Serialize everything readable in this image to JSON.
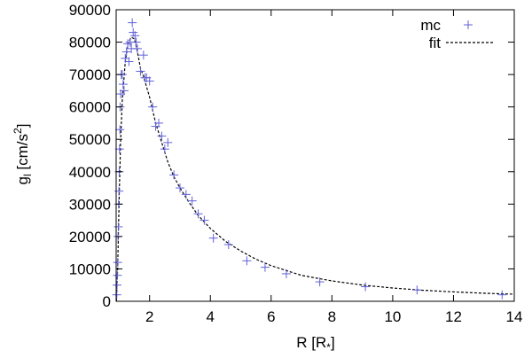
{
  "chart_data": {
    "type": "scatter",
    "xlabel": "R [R",
    "xlabel_sub": "*",
    "xlabel_close": "]",
    "ylabel": "g",
    "ylabel_sub": "l",
    "ylabel_unit_open": " [cm/s",
    "ylabel_unit_sup": "2",
    "ylabel_unit_close": "]",
    "xlim": [
      0.9,
      14
    ],
    "ylim": [
      0,
      90000
    ],
    "x_tick_values": [
      2,
      4,
      6,
      8,
      10,
      12,
      14
    ],
    "x_tick_labels": [
      "2",
      "4",
      "6",
      "8",
      "10",
      "12",
      "14"
    ],
    "y_tick_values": [
      0,
      10000,
      20000,
      30000,
      40000,
      50000,
      60000,
      70000,
      80000,
      90000
    ],
    "y_tick_labels": [
      "0",
      "10000",
      "20000",
      "30000",
      "40000",
      "50000",
      "60000",
      "70000",
      "80000",
      "90000"
    ],
    "grid": false,
    "legend_position": "top-right",
    "series": [
      {
        "name": "mc",
        "style": "points",
        "marker": "plus",
        "color": "#6060d8",
        "points": [
          [
            0.92,
            2000
          ],
          [
            0.93,
            5000
          ],
          [
            0.94,
            8000
          ],
          [
            0.95,
            12000
          ],
          [
            0.96,
            20000
          ],
          [
            0.97,
            23000
          ],
          [
            0.98,
            30000
          ],
          [
            0.99,
            34000
          ],
          [
            1.0,
            40000
          ],
          [
            1.01,
            47000
          ],
          [
            1.02,
            53000
          ],
          [
            1.03,
            60000
          ],
          [
            1.05,
            64000
          ],
          [
            1.07,
            70000
          ],
          [
            1.1,
            70000
          ],
          [
            1.13,
            67000
          ],
          [
            1.16,
            65000
          ],
          [
            1.2,
            75000
          ],
          [
            1.24,
            77000
          ],
          [
            1.28,
            79500
          ],
          [
            1.32,
            74000
          ],
          [
            1.36,
            80000
          ],
          [
            1.4,
            78000
          ],
          [
            1.43,
            86000
          ],
          [
            1.46,
            83000
          ],
          [
            1.52,
            82000
          ],
          [
            1.56,
            80000
          ],
          [
            1.6,
            78000
          ],
          [
            1.7,
            71000
          ],
          [
            1.8,
            76000
          ],
          [
            1.85,
            69000
          ],
          [
            1.9,
            69000
          ],
          [
            2.0,
            68000
          ],
          [
            2.1,
            60000
          ],
          [
            2.2,
            54000
          ],
          [
            2.3,
            55000
          ],
          [
            2.4,
            51000
          ],
          [
            2.5,
            47000
          ],
          [
            2.6,
            49000
          ],
          [
            2.8,
            39000
          ],
          [
            3.0,
            35000
          ],
          [
            3.2,
            33000
          ],
          [
            3.4,
            31000
          ],
          [
            3.6,
            27000
          ],
          [
            3.8,
            25000
          ],
          [
            4.1,
            19500
          ],
          [
            4.6,
            17500
          ],
          [
            5.2,
            12500
          ],
          [
            5.8,
            10500
          ],
          [
            6.5,
            8500
          ],
          [
            7.6,
            6000
          ],
          [
            9.1,
            4500
          ],
          [
            10.8,
            3500
          ],
          [
            13.6,
            2000
          ]
        ]
      },
      {
        "name": "fit",
        "style": "dashed-line",
        "color": "#000000",
        "points": [
          [
            0.91,
            0
          ],
          [
            0.95,
            10000
          ],
          [
            1.0,
            32000
          ],
          [
            1.05,
            50000
          ],
          [
            1.1,
            62000
          ],
          [
            1.2,
            74000
          ],
          [
            1.3,
            80000
          ],
          [
            1.4,
            81500
          ],
          [
            1.5,
            81000
          ],
          [
            1.6,
            77000
          ],
          [
            1.7,
            72000
          ],
          [
            1.8,
            69500
          ],
          [
            2.0,
            63000
          ],
          [
            2.2,
            55000
          ],
          [
            2.4,
            49000
          ],
          [
            2.6,
            43000
          ],
          [
            2.8,
            38500
          ],
          [
            3.0,
            35000
          ],
          [
            3.3,
            30500
          ],
          [
            3.6,
            26500
          ],
          [
            4.0,
            22500
          ],
          [
            4.5,
            18500
          ],
          [
            5.0,
            15500
          ],
          [
            5.5,
            13000
          ],
          [
            6.0,
            11000
          ],
          [
            7.0,
            8000
          ],
          [
            8.0,
            6300
          ],
          [
            9.0,
            5000
          ],
          [
            10.0,
            4100
          ],
          [
            11.0,
            3400
          ],
          [
            12.0,
            2900
          ],
          [
            13.0,
            2500
          ],
          [
            14.0,
            2200
          ]
        ]
      }
    ]
  }
}
